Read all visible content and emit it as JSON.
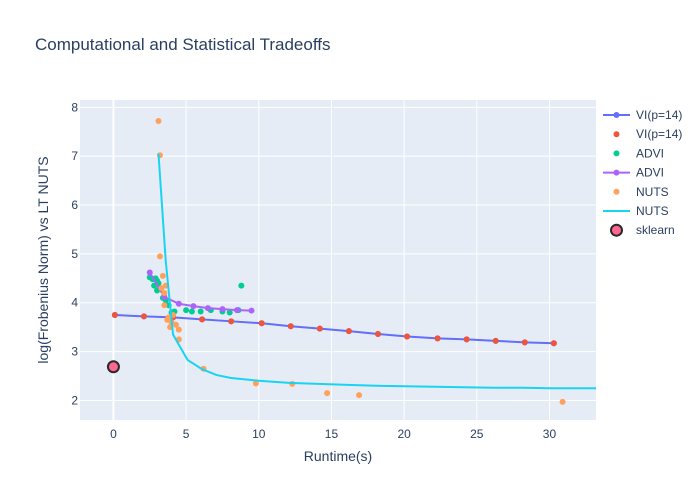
{
  "chart_data": {
    "type": "scatter",
    "title": "Computational and Statistical Tradeoffs",
    "xlabel": "Runtime(s)",
    "ylabel": "log(Frobenius Norm) vs LT NUTS",
    "xlim": [
      -2.3,
      33.2
    ],
    "ylim": [
      1.6,
      8.15
    ],
    "xticks": [
      0,
      5,
      10,
      15,
      20,
      25,
      30
    ],
    "yticks": [
      2,
      3,
      4,
      5,
      6,
      7,
      8
    ],
    "grid": true,
    "plot_background": "#e5ecf6",
    "legend_position": "right",
    "series": [
      {
        "name": "VI(p=14)",
        "mode": "lines+markers",
        "color": "#636efa",
        "x": [
          0.1,
          2.1,
          4.1,
          6.1,
          8.1,
          10.2,
          12.2,
          14.2,
          16.2,
          18.2,
          20.2,
          22.3,
          24.3,
          26.3,
          28.3,
          30.3
        ],
        "y": [
          3.75,
          3.72,
          3.7,
          3.66,
          3.62,
          3.58,
          3.52,
          3.47,
          3.42,
          3.36,
          3.31,
          3.27,
          3.25,
          3.22,
          3.19,
          3.17
        ]
      },
      {
        "name": "VI(p=14)",
        "mode": "markers",
        "color": "#ef553b",
        "x": [
          0.1,
          2.1,
          4.1,
          6.1,
          8.1,
          10.2,
          12.2,
          14.2,
          16.2,
          18.2,
          20.2,
          22.3,
          24.3,
          26.3,
          28.3,
          30.3
        ],
        "y": [
          3.75,
          3.72,
          3.7,
          3.66,
          3.62,
          3.58,
          3.52,
          3.47,
          3.42,
          3.36,
          3.31,
          3.27,
          3.25,
          3.22,
          3.19,
          3.17
        ]
      },
      {
        "name": "ADVI",
        "mode": "markers",
        "color": "#00cc96",
        "x": [
          2.5,
          2.7,
          2.8,
          2.9,
          3.0,
          3.0,
          3.1,
          3.2,
          3.4,
          3.6,
          3.8,
          4.0,
          4.2,
          5.0,
          5.4,
          6.0,
          6.7,
          7.5,
          8.0,
          8.6,
          8.8
        ],
        "y": [
          4.52,
          4.48,
          4.35,
          4.5,
          4.45,
          4.25,
          4.4,
          4.3,
          4.1,
          4.05,
          3.95,
          3.8,
          3.82,
          3.85,
          3.82,
          3.82,
          3.85,
          3.82,
          3.8,
          3.85,
          4.35
        ]
      },
      {
        "name": "ADVI",
        "mode": "lines+markers",
        "color": "#ab63fa",
        "x": [
          2.5,
          3.5,
          4.5,
          5.5,
          6.5,
          7.5,
          8.5,
          9.5
        ],
        "y": [
          4.62,
          4.12,
          3.98,
          3.93,
          3.89,
          3.87,
          3.85,
          3.84
        ]
      },
      {
        "name": "NUTS",
        "mode": "markers",
        "color": "#ffa15a",
        "x": [
          3.1,
          3.2,
          3.2,
          3.3,
          3.4,
          3.5,
          3.5,
          3.6,
          3.7,
          3.8,
          3.9,
          4.0,
          4.1,
          4.3,
          4.5,
          4.5,
          6.2,
          9.8,
          12.3,
          14.7,
          16.9,
          30.9
        ],
        "y": [
          7.72,
          7.02,
          4.95,
          4.3,
          4.55,
          3.95,
          4.2,
          4.35,
          3.65,
          3.7,
          3.5,
          3.6,
          3.75,
          3.55,
          3.45,
          3.25,
          2.65,
          2.35,
          2.34,
          2.15,
          2.11,
          1.97
        ]
      },
      {
        "name": "NUTS",
        "mode": "lines",
        "color": "#19d3f3",
        "x": [
          3.1,
          3.6,
          4.1,
          5.1,
          6.1,
          7.1,
          8.1,
          10.1,
          12.1,
          14.1,
          16.1,
          18.1,
          20.1,
          22.1,
          24.1,
          26.1,
          28.1,
          30.1,
          33.2
        ],
        "y": [
          7.05,
          4.85,
          3.35,
          2.83,
          2.64,
          2.52,
          2.46,
          2.4,
          2.36,
          2.34,
          2.32,
          2.3,
          2.29,
          2.28,
          2.27,
          2.26,
          2.26,
          2.25,
          2.25
        ]
      },
      {
        "name": "sklearn",
        "mode": "markers",
        "marker": "large",
        "color": "#ff6692",
        "x": [
          0.0
        ],
        "y": [
          2.69
        ]
      }
    ]
  }
}
